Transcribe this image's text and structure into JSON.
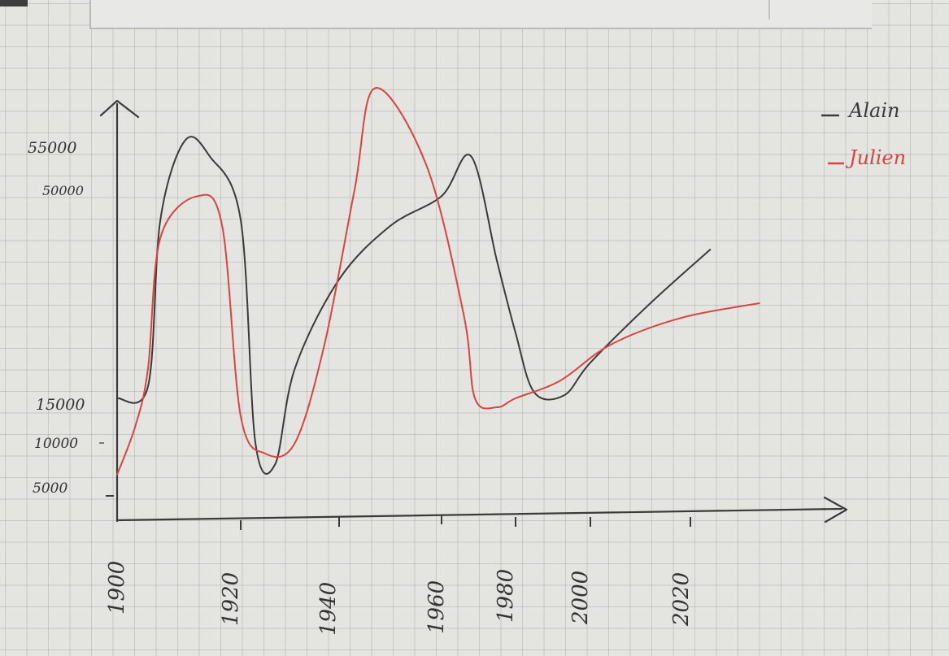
{
  "chart_data": {
    "type": "line",
    "title": "",
    "xlabel": "",
    "ylabel": "",
    "x_tick_labels": [
      "1900",
      "1920",
      "1940",
      "1960",
      "1980",
      "2000",
      "2020"
    ],
    "y_tick_labels": [
      "5000",
      "10000",
      "15000",
      "50000",
      "55000"
    ],
    "legend": [
      "Alain",
      "Julien"
    ],
    "legend_position": "top-right",
    "series": [
      {
        "name": "Alain",
        "color": "#3a3a3a",
        "points": [
          [
            1900,
            15000
          ],
          [
            1905,
            17000
          ],
          [
            1907,
            45000
          ],
          [
            1911,
            56000
          ],
          [
            1915,
            54000
          ],
          [
            1920,
            45000
          ],
          [
            1923,
            10000
          ],
          [
            1927,
            8000
          ],
          [
            1931,
            20000
          ],
          [
            1940,
            35000
          ],
          [
            1950,
            44000
          ],
          [
            1960,
            49000
          ],
          [
            1968,
            54000
          ],
          [
            1975,
            38000
          ],
          [
            1980,
            26000
          ],
          [
            1985,
            16000
          ],
          [
            1993,
            15500
          ],
          [
            2000,
            21000
          ],
          [
            2012,
            31000
          ],
          [
            2024,
            40000
          ]
        ]
      },
      {
        "name": "Julien",
        "color": "#d9443f",
        "points": [
          [
            1900,
            7000
          ],
          [
            1903,
            12000
          ],
          [
            1905,
            20000
          ],
          [
            1907,
            42000
          ],
          [
            1913,
            49000
          ],
          [
            1917,
            44000
          ],
          [
            1920,
            13000
          ],
          [
            1925,
            9000
          ],
          [
            1931,
            10000
          ],
          [
            1937,
            24000
          ],
          [
            1943,
            50000
          ],
          [
            1947,
            63000
          ],
          [
            1957,
            53000
          ],
          [
            1966,
            29000
          ],
          [
            1969,
            15000
          ],
          [
            1975,
            14000
          ],
          [
            1980,
            15000
          ],
          [
            1992,
            18000
          ],
          [
            2004,
            24000
          ],
          [
            2018,
            28500
          ],
          [
            2034,
            31000
          ]
        ]
      }
    ]
  }
}
